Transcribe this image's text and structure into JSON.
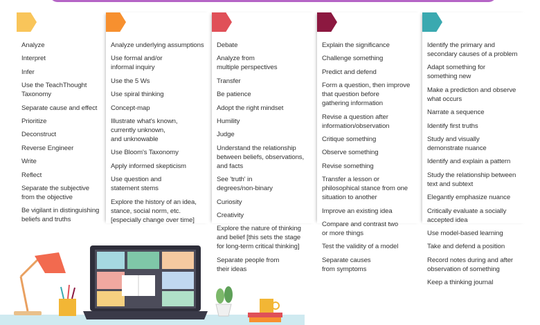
{
  "columns": [
    {
      "color": "#f9c55a",
      "items": [
        "Analyze",
        "Interpret",
        "Infer",
        "Use the TeachThought\nTaxonomy",
        "Separate cause and effect",
        "Prioritize",
        "Deconstruct",
        "Reverse Engineer",
        "Write",
        "Reflect",
        "Separate the subjective\nfrom the objective",
        "Be vigilant in distinguishing\nbeliefs and truths"
      ]
    },
    {
      "color": "#f7902f",
      "items": [
        "Analyze underlying assumptions",
        "Use formal and/or\ninformal inquiry",
        "Use the 5 Ws",
        "Use spiral thinking",
        "Concept-map",
        "Illustrate what's known,\ncurrently unknown,\nand unknowable",
        "Use Bloom's Taxonomy",
        "Apply informed skepticism",
        "Use question and\nstatement stems",
        "Explore the history of an idea,\nstance, social norm, etc.\n[especially change over time]"
      ]
    },
    {
      "color": "#e05058",
      "items": [
        "Debate",
        "Analyze from\nmultiple perspectives",
        "Transfer",
        "Be patience",
        "Adopt the right mindset",
        "Humility",
        "Judge",
        "Understand the relationship\nbetween beliefs, observations,\nand facts",
        "See 'truth' in\ndegrees/non-binary",
        "Curiosity",
        "Creativity",
        "Explore the nature of thinking\nand belief [this sets the stage\nfor long-term critical thinking]",
        "Separate people from\ntheir ideas"
      ]
    },
    {
      "color": "#8c1840",
      "items": [
        "Explain the significance",
        "Challenge something",
        "Predict and defend",
        "Form a question, then improve\nthat question before\ngathering information",
        "Revise a question after\ninformation/observation",
        "Critique something",
        "Observe something",
        "Revise something",
        "Transfer a lesson or\nphilosophical stance from one\nsituation to another",
        "Improve an existing idea",
        "Compare and contrast two\nor more things",
        "Test the validity of a model",
        "Separate causes\nfrom symptoms"
      ]
    },
    {
      "color": "#3aa9b0",
      "items": [
        "Identify the primary and\nsecondary causes of a problem",
        "Adapt something for\nsomething new",
        "Make a prediction and observe\nwhat occurs",
        "Narrate a sequence",
        "Identify first truths",
        "Study and visually\ndemonstrate nuance",
        "Identify and explain a pattern",
        "Study the relationship between\ntext and subtext",
        "Elegantly emphasize nuance",
        "Critically evaluate a socially\naccepted idea",
        "Use model-based learning",
        "Take and defend a position",
        "Record notes during and after\nobservation of something",
        "Keep a thinking journal"
      ]
    }
  ],
  "colors": {
    "banner": "#b565c6",
    "desk": "#cfeaf0"
  }
}
